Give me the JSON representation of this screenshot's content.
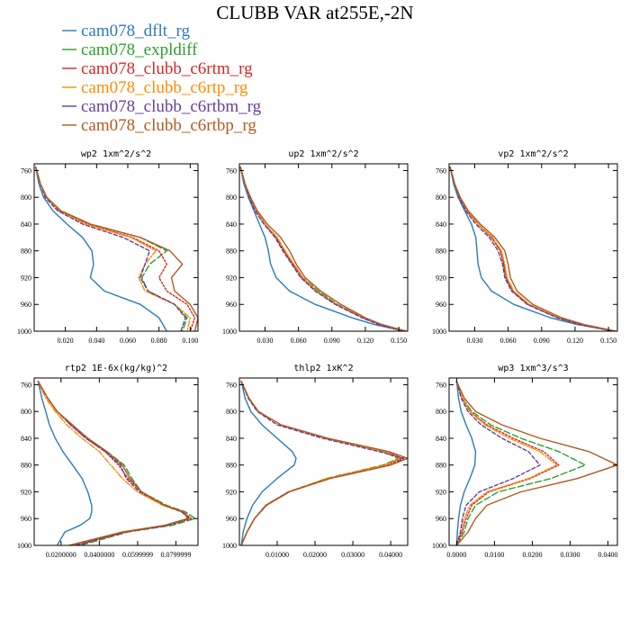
{
  "title": "CLUBB VAR at255E,-2N",
  "legend": {
    "placement": "top-left",
    "entries": [
      {
        "label": "cam078_dflt_rg",
        "color": "#2b7bba",
        "dash": "solid"
      },
      {
        "label": "cam078_expldiff",
        "color": "#2ca02c",
        "dash": "long-dash"
      },
      {
        "label": "cam078_clubb_c6rtm_rg",
        "color": "#d62728",
        "dash": "dot"
      },
      {
        "label": "cam078_clubb_c6rtp_rg",
        "color": "#ff8c00",
        "dash": "dash-dot"
      },
      {
        "label": "cam078_clubb_c6rtbm_rg",
        "color": "#6a3d9a",
        "dash": "dash"
      },
      {
        "label": "cam078_clubb_c6rtbp_rg",
        "color": "#b35a1f",
        "dash": "solid"
      }
    ]
  },
  "chart_data": [
    {
      "type": "line",
      "title": "wp2  1xm^2/s^2",
      "xlim": [
        0,
        0.105
      ],
      "ylim": [
        1000,
        750
      ],
      "xticks": [
        0.02,
        0.04,
        0.06,
        0.08,
        0.1
      ],
      "xtick_labels": [
        "0.020",
        "0.040",
        "0.060",
        "0.080",
        "0.100"
      ],
      "yticks": [
        760,
        800,
        840,
        880,
        920,
        960,
        1000
      ],
      "y": [
        755,
        780,
        800,
        820,
        840,
        860,
        880,
        900,
        920,
        940,
        960,
        980,
        1000
      ],
      "series": [
        {
          "values": [
            0.001,
            0.003,
            0.006,
            0.012,
            0.021,
            0.031,
            0.037,
            0.038,
            0.036,
            0.045,
            0.068,
            0.08,
            0.085
          ]
        },
        {
          "values": [
            0.001,
            0.004,
            0.008,
            0.017,
            0.036,
            0.068,
            0.085,
            0.074,
            0.069,
            0.073,
            0.09,
            0.098,
            0.095
          ]
        },
        {
          "values": [
            0.001,
            0.004,
            0.008,
            0.016,
            0.034,
            0.063,
            0.08,
            0.085,
            0.08,
            0.085,
            0.098,
            0.103,
            0.1
          ]
        },
        {
          "values": [
            0.001,
            0.004,
            0.008,
            0.016,
            0.033,
            0.062,
            0.078,
            0.071,
            0.067,
            0.071,
            0.09,
            0.1,
            0.098
          ]
        },
        {
          "values": [
            0.001,
            0.004,
            0.007,
            0.015,
            0.031,
            0.057,
            0.074,
            0.071,
            0.068,
            0.073,
            0.09,
            0.097,
            0.094
          ]
        },
        {
          "values": [
            0.001,
            0.004,
            0.008,
            0.017,
            0.036,
            0.068,
            0.087,
            0.095,
            0.088,
            0.09,
            0.1,
            0.105,
            0.103
          ]
        }
      ]
    },
    {
      "type": "line",
      "title": "up2  1xm^2/s^2",
      "xlim": [
        0.007,
        0.158
      ],
      "ylim": [
        1000,
        750
      ],
      "xticks": [
        0.03,
        0.06,
        0.09,
        0.12,
        0.15
      ],
      "xtick_labels": [
        "0.030",
        "0.060",
        "0.090",
        "0.120",
        "0.150"
      ],
      "yticks": [
        760,
        800,
        840,
        880,
        920,
        960,
        1000
      ],
      "y": [
        755,
        780,
        800,
        820,
        840,
        860,
        880,
        900,
        920,
        940,
        960,
        980,
        990,
        1000
      ],
      "series": [
        {
          "values": [
            0.008,
            0.011,
            0.015,
            0.02,
            0.025,
            0.03,
            0.033,
            0.035,
            0.04,
            0.052,
            0.075,
            0.108,
            0.128,
            0.155
          ]
        },
        {
          "values": [
            0.008,
            0.012,
            0.016,
            0.022,
            0.03,
            0.04,
            0.047,
            0.055,
            0.064,
            0.078,
            0.095,
            0.118,
            0.133,
            0.155
          ]
        },
        {
          "values": [
            0.008,
            0.012,
            0.016,
            0.022,
            0.03,
            0.04,
            0.047,
            0.055,
            0.063,
            0.076,
            0.094,
            0.118,
            0.133,
            0.155
          ]
        },
        {
          "values": [
            0.008,
            0.012,
            0.016,
            0.022,
            0.03,
            0.041,
            0.048,
            0.056,
            0.064,
            0.076,
            0.094,
            0.118,
            0.133,
            0.155
          ]
        },
        {
          "values": [
            0.008,
            0.012,
            0.016,
            0.021,
            0.029,
            0.039,
            0.046,
            0.054,
            0.062,
            0.075,
            0.093,
            0.117,
            0.132,
            0.155
          ]
        },
        {
          "values": [
            0.008,
            0.012,
            0.017,
            0.023,
            0.032,
            0.044,
            0.052,
            0.058,
            0.066,
            0.08,
            0.098,
            0.12,
            0.135,
            0.157
          ]
        }
      ]
    },
    {
      "type": "line",
      "title": "vp2  1xm^2/s^2",
      "xlim": [
        0.007,
        0.158
      ],
      "ylim": [
        1000,
        750
      ],
      "xticks": [
        0.03,
        0.06,
        0.09,
        0.12,
        0.15
      ],
      "xtick_labels": [
        "0.030",
        "0.060",
        "0.090",
        "0.120",
        "0.150"
      ],
      "yticks": [
        760,
        800,
        840,
        880,
        920,
        960,
        1000
      ],
      "y": [
        755,
        780,
        800,
        820,
        840,
        860,
        880,
        900,
        920,
        940,
        960,
        980,
        990,
        1000
      ],
      "series": [
        {
          "values": [
            0.008,
            0.011,
            0.015,
            0.021,
            0.027,
            0.031,
            0.032,
            0.033,
            0.036,
            0.045,
            0.065,
            0.098,
            0.122,
            0.155
          ]
        },
        {
          "values": [
            0.008,
            0.012,
            0.016,
            0.023,
            0.033,
            0.045,
            0.053,
            0.056,
            0.058,
            0.064,
            0.078,
            0.105,
            0.125,
            0.155
          ]
        },
        {
          "values": [
            0.008,
            0.012,
            0.016,
            0.023,
            0.033,
            0.045,
            0.053,
            0.056,
            0.058,
            0.064,
            0.078,
            0.105,
            0.125,
            0.155
          ]
        },
        {
          "values": [
            0.008,
            0.012,
            0.016,
            0.023,
            0.033,
            0.046,
            0.054,
            0.057,
            0.059,
            0.065,
            0.079,
            0.105,
            0.125,
            0.155
          ]
        },
        {
          "values": [
            0.008,
            0.012,
            0.016,
            0.022,
            0.031,
            0.043,
            0.051,
            0.055,
            0.057,
            0.063,
            0.077,
            0.104,
            0.124,
            0.155
          ]
        },
        {
          "values": [
            0.008,
            0.012,
            0.017,
            0.024,
            0.035,
            0.048,
            0.057,
            0.06,
            0.062,
            0.068,
            0.082,
            0.108,
            0.128,
            0.157
          ]
        }
      ]
    },
    {
      "type": "line",
      "title": "rtp2  1E-6x(kg/kg)^2",
      "xlim": [
        0.006,
        0.0915
      ],
      "ylim": [
        1000,
        750
      ],
      "xticks": [
        0.02,
        0.04,
        0.06,
        0.08
      ],
      "xtick_labels": [
        "0.0200000",
        "0.0400000",
        "0.0599999",
        "0.0799999"
      ],
      "yticks": [
        760,
        800,
        840,
        880,
        920,
        960,
        1000
      ],
      "y": [
        755,
        780,
        800,
        820,
        840,
        860,
        880,
        900,
        920,
        940,
        950,
        960,
        970,
        980,
        1000
      ],
      "series": [
        {
          "values": [
            0.008,
            0.01,
            0.012,
            0.014,
            0.017,
            0.021,
            0.026,
            0.031,
            0.034,
            0.036,
            0.036,
            0.035,
            0.03,
            0.022,
            0.018
          ]
        },
        {
          "values": [
            0.008,
            0.013,
            0.018,
            0.026,
            0.034,
            0.044,
            0.053,
            0.057,
            0.062,
            0.075,
            0.085,
            0.09,
            0.078,
            0.055,
            0.03
          ]
        },
        {
          "values": [
            0.008,
            0.013,
            0.018,
            0.025,
            0.033,
            0.043,
            0.05,
            0.055,
            0.062,
            0.074,
            0.084,
            0.088,
            0.076,
            0.054,
            0.028
          ]
        },
        {
          "values": [
            0.008,
            0.012,
            0.017,
            0.023,
            0.031,
            0.04,
            0.046,
            0.052,
            0.06,
            0.073,
            0.083,
            0.087,
            0.075,
            0.052,
            0.026
          ]
        },
        {
          "values": [
            0.008,
            0.013,
            0.018,
            0.025,
            0.033,
            0.043,
            0.051,
            0.054,
            0.061,
            0.074,
            0.083,
            0.087,
            0.076,
            0.053,
            0.027
          ]
        },
        {
          "values": [
            0.008,
            0.013,
            0.018,
            0.026,
            0.034,
            0.044,
            0.052,
            0.056,
            0.062,
            0.074,
            0.084,
            0.086,
            0.074,
            0.052,
            0.024
          ]
        }
      ]
    },
    {
      "type": "line",
      "title": "thlp2  1xK^2",
      "xlim": [
        0,
        0.0445
      ],
      "ylim": [
        1000,
        750
      ],
      "xticks": [
        0.01,
        0.02,
        0.03,
        0.04
      ],
      "xtick_labels": [
        "0.01000",
        "0.02000",
        "0.03000",
        "0.04000"
      ],
      "yticks": [
        760,
        800,
        840,
        880,
        920,
        960,
        1000
      ],
      "y": [
        755,
        780,
        800,
        820,
        840,
        860,
        870,
        880,
        900,
        920,
        940,
        960,
        980,
        1000
      ],
      "series": [
        {
          "values": [
            0.0005,
            0.0015,
            0.003,
            0.006,
            0.01,
            0.014,
            0.015,
            0.0145,
            0.01,
            0.006,
            0.0035,
            0.002,
            0.001,
            0.0005
          ]
        },
        {
          "values": [
            0.0005,
            0.0025,
            0.005,
            0.011,
            0.023,
            0.038,
            0.042,
            0.038,
            0.023,
            0.013,
            0.007,
            0.004,
            0.002,
            0.0005
          ]
        },
        {
          "values": [
            0.0005,
            0.0025,
            0.005,
            0.011,
            0.023,
            0.039,
            0.043,
            0.039,
            0.0235,
            0.013,
            0.007,
            0.004,
            0.002,
            0.0005
          ]
        },
        {
          "values": [
            0.0005,
            0.0025,
            0.005,
            0.011,
            0.023,
            0.0385,
            0.0425,
            0.0385,
            0.0232,
            0.013,
            0.007,
            0.004,
            0.002,
            0.0005
          ]
        },
        {
          "values": [
            0.0005,
            0.0023,
            0.0047,
            0.01,
            0.022,
            0.037,
            0.0435,
            0.04,
            0.024,
            0.013,
            0.007,
            0.004,
            0.002,
            0.0005
          ]
        },
        {
          "values": [
            0.0005,
            0.0025,
            0.005,
            0.011,
            0.0235,
            0.0395,
            0.0445,
            0.04,
            0.024,
            0.0132,
            0.0072,
            0.004,
            0.002,
            0.0005
          ]
        }
      ]
    },
    {
      "type": "line",
      "title": "wp3  1xm^3/s^3",
      "xlim": [
        -0.002,
        0.0425
      ],
      "ylim": [
        1000,
        750
      ],
      "xticks": [
        0,
        0.01,
        0.02,
        0.03,
        0.04
      ],
      "xtick_labels": [
        "0.0000",
        "0.0100",
        "0.0200",
        "0.0300",
        "0.0400"
      ],
      "yticks": [
        760,
        800,
        840,
        880,
        920,
        960,
        1000
      ],
      "y": [
        755,
        780,
        800,
        820,
        840,
        860,
        880,
        900,
        920,
        940,
        960,
        980,
        1000
      ],
      "series": [
        {
          "values": [
            0.0,
            0.0005,
            0.0012,
            0.0025,
            0.004,
            0.005,
            0.0048,
            0.0035,
            0.002,
            0.001,
            0.0005,
            0.0002,
            0.0
          ]
        },
        {
          "values": [
            0.0,
            0.0015,
            0.004,
            0.009,
            0.017,
            0.027,
            0.034,
            0.025,
            0.011,
            0.005,
            0.003,
            0.002,
            0.0
          ]
        },
        {
          "values": [
            0.0,
            0.0015,
            0.0035,
            0.008,
            0.015,
            0.023,
            0.027,
            0.0195,
            0.0085,
            0.004,
            0.0025,
            0.0015,
            0.0
          ]
        },
        {
          "values": [
            0.0,
            0.0015,
            0.0035,
            0.0075,
            0.014,
            0.022,
            0.0265,
            0.019,
            0.008,
            0.0035,
            0.002,
            0.0012,
            0.0
          ]
        },
        {
          "values": [
            0.0,
            0.0012,
            0.003,
            0.0065,
            0.012,
            0.019,
            0.022,
            0.015,
            0.006,
            0.0025,
            0.0015,
            0.001,
            0.0
          ]
        },
        {
          "values": [
            0.0,
            0.002,
            0.005,
            0.012,
            0.022,
            0.035,
            0.0425,
            0.032,
            0.017,
            0.008,
            0.005,
            0.003,
            0.0
          ]
        }
      ]
    }
  ]
}
